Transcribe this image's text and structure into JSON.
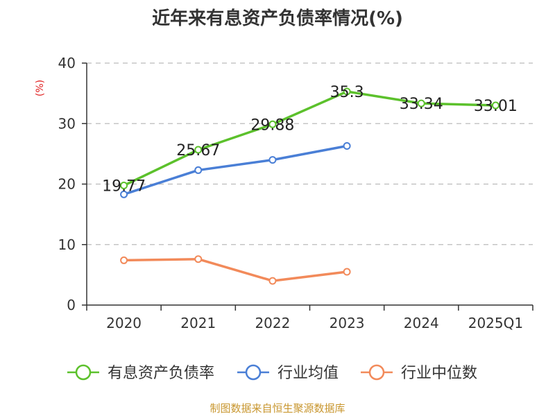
{
  "chart_data": {
    "type": "line",
    "title": "近年来有息资产负债率情况(%)",
    "ylabel": "(%)",
    "xlabel": "",
    "categories": [
      "2020",
      "2021",
      "2022",
      "2023",
      "2024",
      "2025Q1"
    ],
    "ylim": [
      0,
      40
    ],
    "yticks": [
      0,
      10,
      20,
      30,
      40
    ],
    "grid": true,
    "legend_position": "bottom",
    "series": [
      {
        "name": "有息资产负债率",
        "color": "#5cc12c",
        "values": [
          19.77,
          25.67,
          29.88,
          35.3,
          33.34,
          33.01
        ],
        "labels": [
          "19.77",
          "25.67",
          "29.88",
          "35.3",
          "33.34",
          "33.01"
        ],
        "show_labels": true
      },
      {
        "name": "行业均值",
        "color": "#4a7fd6",
        "values": [
          18.3,
          22.3,
          24.0,
          26.3,
          null,
          null
        ],
        "show_labels": false
      },
      {
        "name": "行业中位数",
        "color": "#f28a5a",
        "values": [
          7.4,
          7.6,
          4.0,
          5.5,
          null,
          null
        ],
        "show_labels": false
      }
    ]
  },
  "colors": {
    "axis": "#333333",
    "grid": "#bbbbbb",
    "unit": "#e02020",
    "source": "#c8962e"
  },
  "footer": {
    "source": "制图数据来自恒生聚源数据库"
  }
}
